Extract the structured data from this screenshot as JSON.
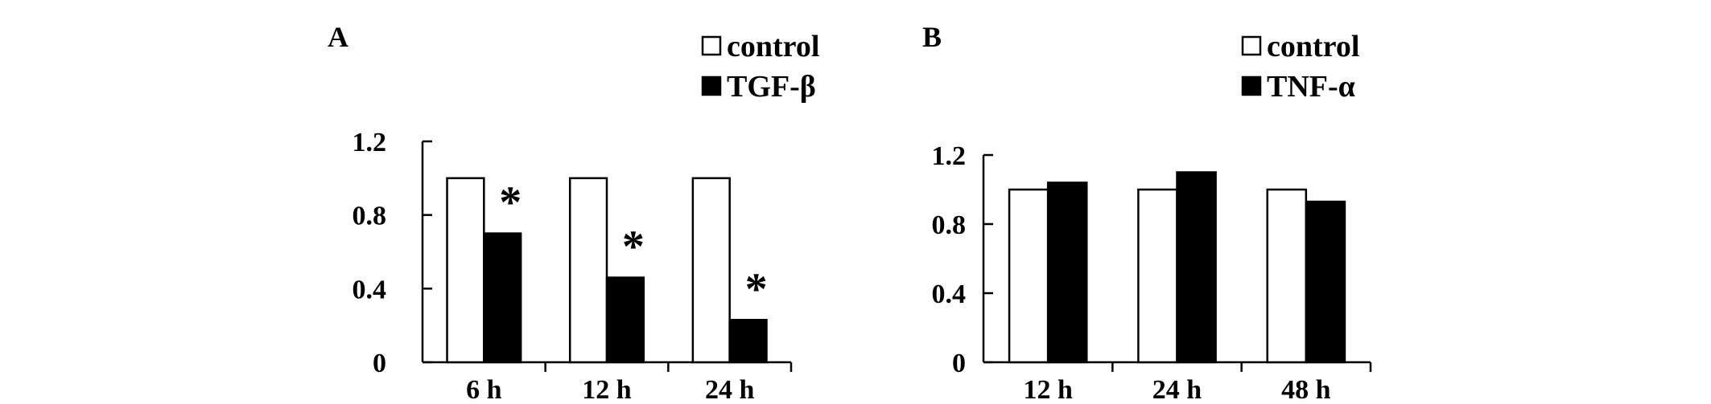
{
  "colors": {
    "control": "#ffffff",
    "treatment": "#000000",
    "stroke": "#000000"
  },
  "chart_data": [
    {
      "type": "bar",
      "panel_label": "A",
      "categories": [
        "6 h",
        "12 h",
        "24 h"
      ],
      "series": [
        {
          "name": "control",
          "values": [
            1.0,
            1.0,
            1.0
          ]
        },
        {
          "name": "TGF-β",
          "values": [
            0.7,
            0.46,
            0.23
          ]
        }
      ],
      "significance": [
        "*",
        "*",
        "*"
      ],
      "ylim": [
        0,
        1.2
      ],
      "yticks": [
        "0",
        "0.4",
        "0.8",
        "1.2"
      ],
      "legend_position": "top-right",
      "grid": false
    },
    {
      "type": "bar",
      "panel_label": "B",
      "categories": [
        "12 h",
        "24 h",
        "48 h"
      ],
      "series": [
        {
          "name": "control",
          "values": [
            1.0,
            1.0,
            1.0
          ]
        },
        {
          "name": "TNF-α",
          "values": [
            1.04,
            1.1,
            0.93
          ]
        }
      ],
      "significance": [
        "",
        "",
        ""
      ],
      "ylim": [
        0,
        1.2
      ],
      "yticks": [
        "0",
        "0.4",
        "0.8",
        "1.2"
      ],
      "legend_position": "top-right",
      "grid": false
    }
  ]
}
